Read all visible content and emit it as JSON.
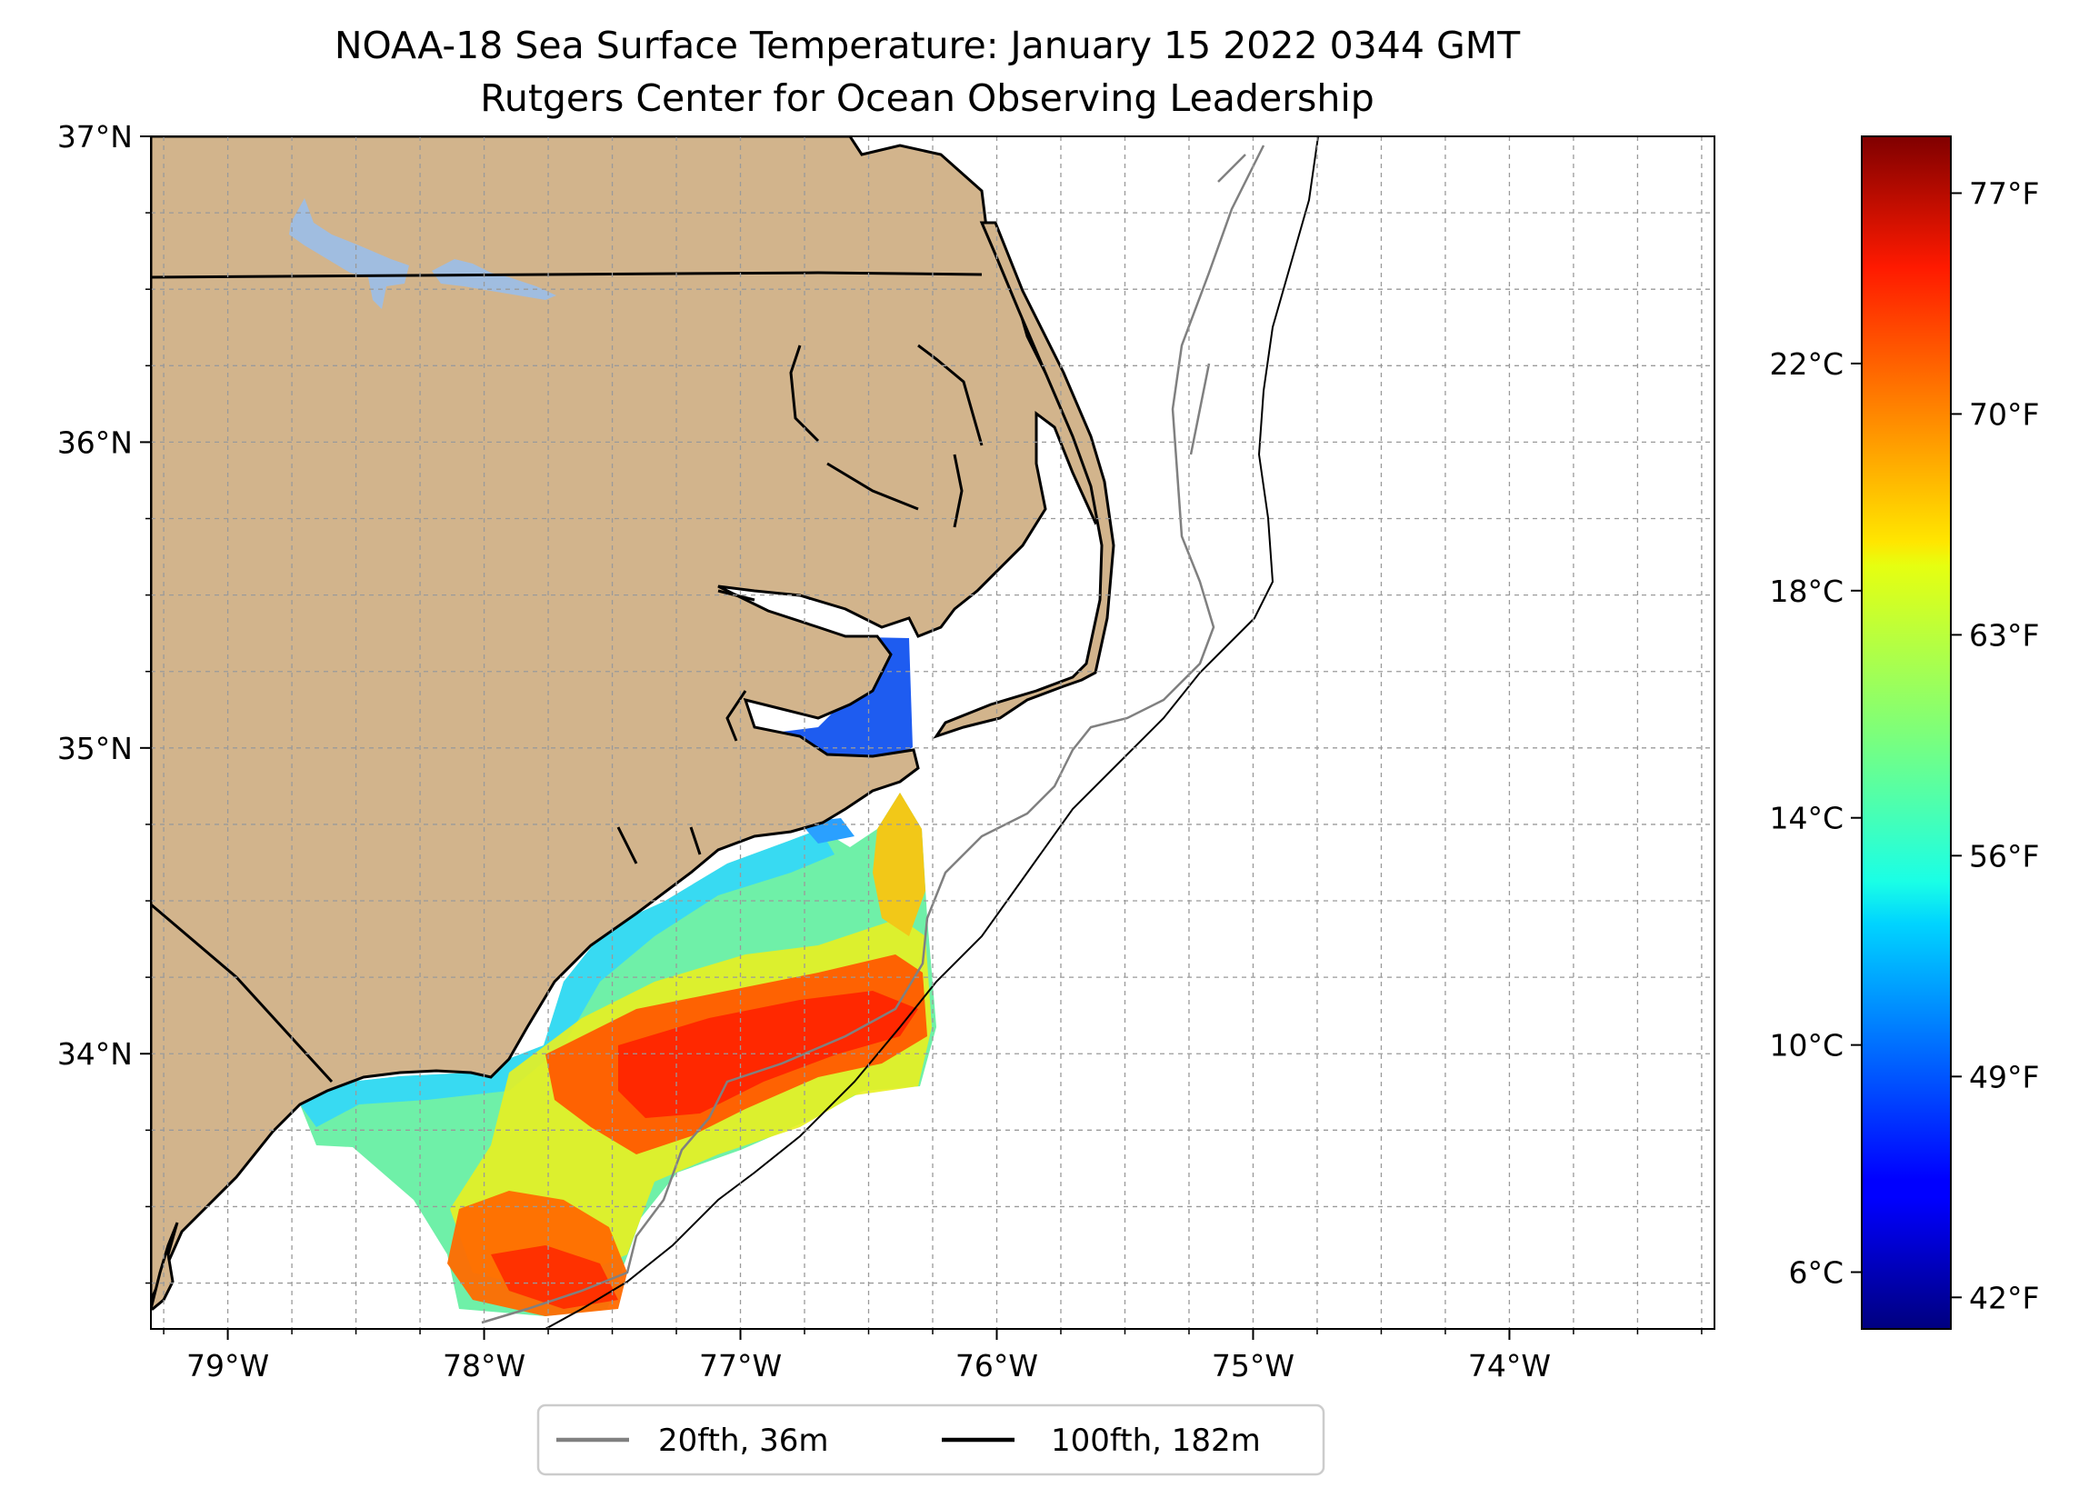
{
  "title": {
    "line1": "NOAA-18 Sea Surface Temperature: January 15 2022 0344 GMT",
    "line2": "Rutgers Center for Ocean Observing Leadership"
  },
  "map": {
    "extent": {
      "lon_min": -79.3,
      "lon_max": -73.2,
      "lat_min": 33.1,
      "lat_max": 37.0
    },
    "lat_ticks": [
      {
        "value": 37,
        "label": "37°N"
      },
      {
        "value": 36,
        "label": "36°N"
      },
      {
        "value": 35,
        "label": "35°N"
      },
      {
        "value": 34,
        "label": "34°N"
      }
    ],
    "lon_ticks": [
      {
        "value": -79,
        "label": "79°W"
      },
      {
        "value": -78,
        "label": "78°W"
      },
      {
        "value": -77,
        "label": "77°W"
      },
      {
        "value": -76,
        "label": "76°W"
      },
      {
        "value": -75,
        "label": "75°W"
      },
      {
        "value": -74,
        "label": "74°W"
      }
    ],
    "grid": "dashed, every 0.25°",
    "colors": {
      "land": "#d2b48c",
      "lake": "#a0bde0",
      "ocean": "#ffffff",
      "coast": "#000000"
    }
  },
  "colorbar": {
    "colormap": "jet",
    "celsius_range": [
      5,
      26
    ],
    "celsius_ticks": [
      {
        "value": 6,
        "label": "6°C"
      },
      {
        "value": 10,
        "label": "10°C"
      },
      {
        "value": 14,
        "label": "14°C"
      },
      {
        "value": 18,
        "label": "18°C"
      },
      {
        "value": 22,
        "label": "22°C"
      }
    ],
    "fahrenheit_ticks": [
      {
        "value": 42,
        "label": "42°F"
      },
      {
        "value": 49,
        "label": "49°F"
      },
      {
        "value": 56,
        "label": "56°F"
      },
      {
        "value": 63,
        "label": "63°F"
      },
      {
        "value": 70,
        "label": "70°F"
      },
      {
        "value": 77,
        "label": "77°F"
      }
    ]
  },
  "legend": {
    "items": [
      {
        "label": "20fth, 36m",
        "color": "#808080"
      },
      {
        "label": "100fth, 182m",
        "color": "#000000"
      }
    ]
  }
}
